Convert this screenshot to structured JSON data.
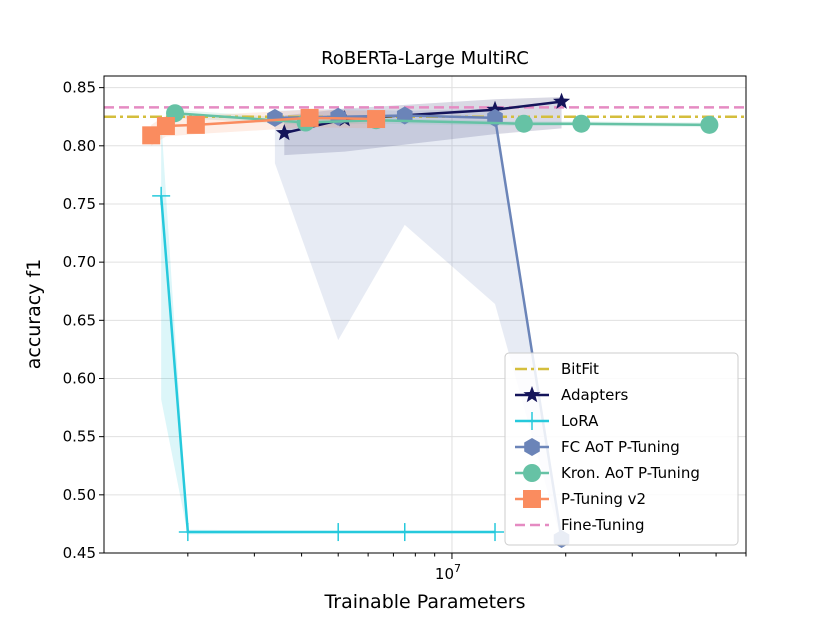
{
  "chart_data": {
    "type": "line",
    "title": "RoBERTa-Large MultiRC",
    "xlabel": "Trainable Parameters",
    "ylabel": "accuracy f1",
    "x_scale": "log",
    "xlim": [
      1200000,
      60000000
    ],
    "ylim": [
      0.45,
      0.86
    ],
    "x_ticks": [
      {
        "value": 10000000,
        "label": "10^7"
      }
    ],
    "y_ticks": [
      0.45,
      0.5,
      0.55,
      0.6,
      0.65,
      0.7,
      0.75,
      0.8,
      0.85
    ],
    "y_tick_labels": [
      "0.45",
      "0.50",
      "0.55",
      "0.60",
      "0.65",
      "0.70",
      "0.75",
      "0.80",
      "0.85"
    ],
    "grid": true,
    "legend_position": "lower right",
    "hlines": [
      {
        "name": "BitFit",
        "y": 0.825,
        "color": "#d4be3c",
        "style": "dashdot"
      },
      {
        "name": "Fine-Tuning",
        "y": 0.833,
        "color": "#e58bc2",
        "style": "dashed"
      }
    ],
    "series": [
      {
        "name": "Adapters",
        "color": "#14145a",
        "marker": "star",
        "x": [
          3600000,
          5200000,
          13000000,
          19500000
        ],
        "y": [
          0.811,
          0.823,
          0.831,
          0.838
        ],
        "band_low": [
          0.792,
          0.795,
          0.81,
          0.815
        ],
        "band_high": [
          0.826,
          0.832,
          0.84,
          0.842
        ]
      },
      {
        "name": "LoRA",
        "color": "#26c9dc",
        "marker": "plus",
        "x": [
          1700000,
          2000000,
          5000000,
          7500000,
          13000000
        ],
        "y": [
          0.757,
          0.468,
          0.468,
          0.468,
          0.468
        ],
        "band_low": [
          0.582,
          0.466,
          0.467,
          0.467,
          0.467
        ],
        "band_high": [
          0.822,
          0.47,
          0.469,
          0.469,
          0.469
        ]
      },
      {
        "name": "FC AoT P-Tuning",
        "color": "#6b84b8",
        "marker": "hexagon",
        "x": [
          3400000,
          5000000,
          7500000,
          13000000,
          19500000
        ],
        "y": [
          0.824,
          0.825,
          0.826,
          0.824,
          0.462
        ],
        "band_low": [
          0.785,
          0.633,
          0.732,
          0.664,
          0.46
        ],
        "band_high": [
          0.83,
          0.832,
          0.83,
          0.832,
          0.465
        ]
      },
      {
        "name": "Kron. AoT P-Tuning",
        "color": "#66c2a5",
        "marker": "circle",
        "x": [
          1850000,
          4100000,
          6300000,
          15500000,
          22000000,
          48000000
        ],
        "y": [
          0.828,
          0.82,
          0.822,
          0.819,
          0.819,
          0.818
        ],
        "band_low": [
          0.824,
          0.818,
          0.819,
          0.817,
          0.817,
          0.816
        ],
        "band_high": [
          0.831,
          0.823,
          0.824,
          0.821,
          0.821,
          0.82
        ]
      },
      {
        "name": "P-Tuning v2",
        "color": "#fa8c5f",
        "marker": "square",
        "x": [
          1600000,
          1750000,
          2100000,
          4200000,
          6300000
        ],
        "y": [
          0.809,
          0.817,
          0.818,
          0.824,
          0.823
        ],
        "band_low": [
          0.8,
          0.808,
          0.81,
          0.816,
          0.815
        ],
        "band_high": [
          0.818,
          0.826,
          0.826,
          0.831,
          0.83
        ]
      }
    ],
    "legend_order": [
      "BitFit",
      "Adapters",
      "LoRA",
      "FC AoT P-Tuning",
      "Kron. AoT P-Tuning",
      "P-Tuning v2",
      "Fine-Tuning"
    ]
  }
}
